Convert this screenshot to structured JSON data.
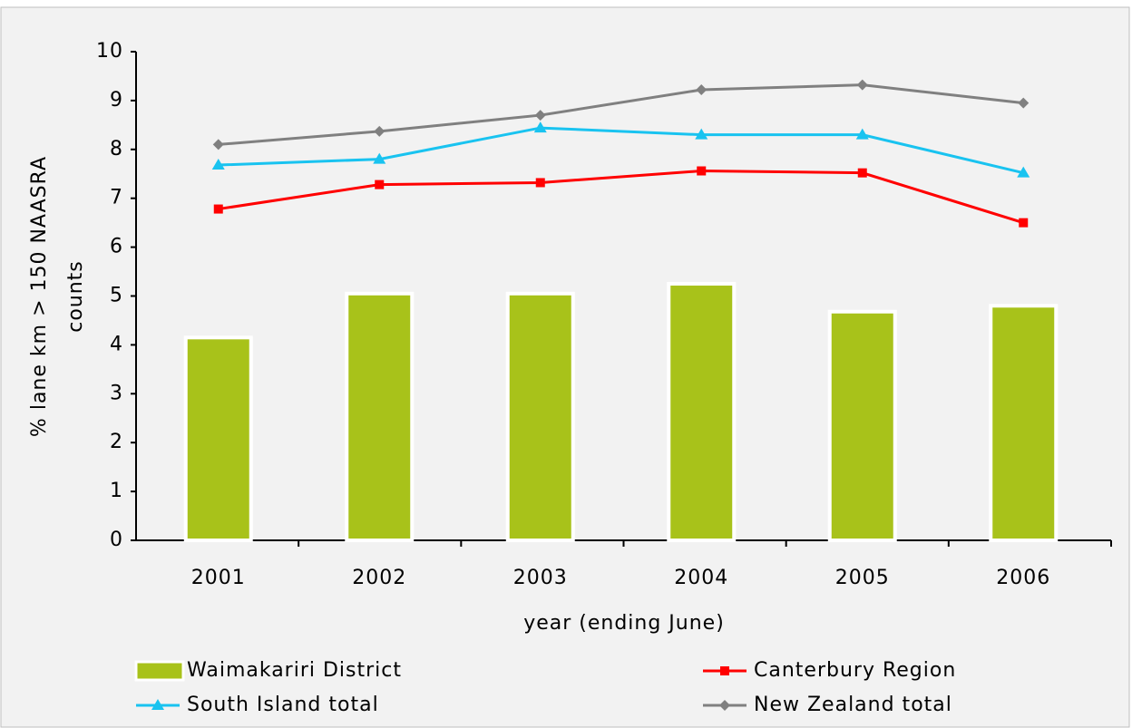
{
  "chart_data": {
    "type": "bar+line",
    "x_label": "year (ending June)",
    "y_label": [
      "% lane km > 150 NAASRA",
      "counts"
    ],
    "categories": [
      "2001",
      "2002",
      "2003",
      "2004",
      "2005",
      "2006"
    ],
    "series": [
      {
        "name": "Waimakariri District",
        "type": "bar",
        "color": "#a8c21a",
        "values": [
          4.15,
          5.05,
          5.05,
          5.25,
          4.68,
          4.8
        ]
      },
      {
        "name": "Canterbury Region",
        "type": "line",
        "marker": "square",
        "color": "#ff0000",
        "values": [
          6.78,
          7.28,
          7.32,
          7.56,
          7.52,
          6.5
        ]
      },
      {
        "name": "South Island total",
        "type": "line",
        "marker": "triangle",
        "color": "#19c3f0",
        "values": [
          7.68,
          7.8,
          8.44,
          8.3,
          8.3,
          7.52
        ]
      },
      {
        "name": "New Zealand total",
        "type": "line",
        "marker": "diamond",
        "color": "#808080",
        "values": [
          8.1,
          8.37,
          8.7,
          9.22,
          9.32,
          8.95
        ]
      }
    ],
    "ylim": [
      0,
      10
    ],
    "yticks": [
      0,
      1,
      2,
      3,
      4,
      5,
      6,
      7,
      8,
      9,
      10
    ]
  }
}
